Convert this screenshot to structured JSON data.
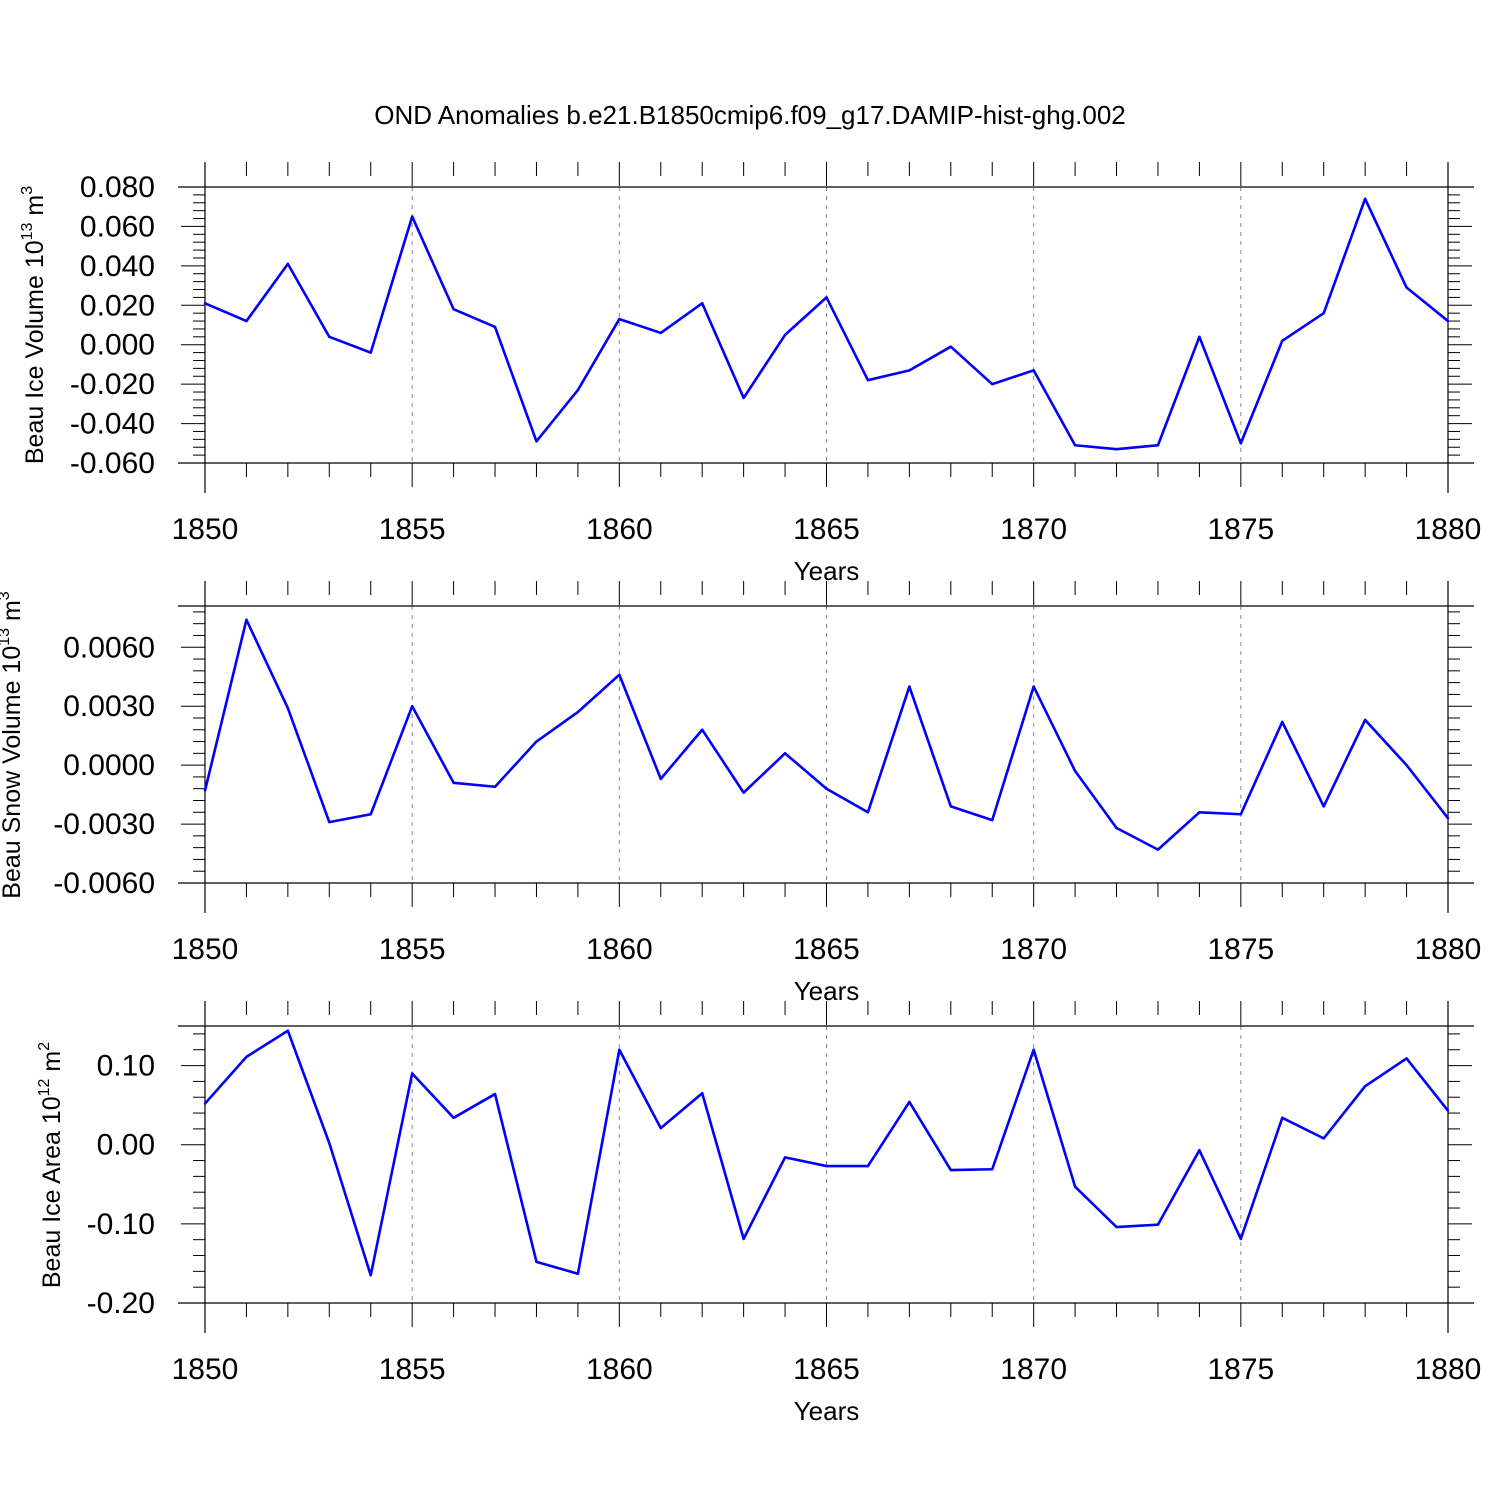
{
  "title": "OND Anomalies b.e21.B1850cmip6.f09_g17.DAMIP-hist-ghg.002",
  "colors": {
    "line": "#0000ff",
    "axis": "#000000",
    "grid": "#888888"
  },
  "chart_data": [
    {
      "type": "line",
      "ylabel_main": "Beau Ice Volume 10",
      "ylabel_exp": "13",
      "ylabel_unit": "m",
      "ylabel_unit_exp": "3",
      "xlabel": "Years",
      "xlim": [
        1850,
        1880
      ],
      "ylim": [
        -0.06,
        0.08
      ],
      "xticks": [
        "1850",
        "1855",
        "1860",
        "1865",
        "1870",
        "1875",
        "1880"
      ],
      "xtick_values": [
        1850,
        1855,
        1860,
        1865,
        1870,
        1875,
        1880
      ],
      "yticks": [
        "0.080",
        "0.060",
        "0.040",
        "0.020",
        "0.000",
        "-0.020",
        "-0.040",
        "-0.060"
      ],
      "ytick_values": [
        0.08,
        0.06,
        0.04,
        0.02,
        0.0,
        -0.02,
        -0.04,
        -0.06
      ],
      "x": [
        1850,
        1851,
        1852,
        1853,
        1854,
        1855,
        1856,
        1857,
        1858,
        1859,
        1860,
        1861,
        1862,
        1863,
        1864,
        1865,
        1866,
        1867,
        1868,
        1869,
        1870,
        1871,
        1872,
        1873,
        1874,
        1875,
        1876,
        1877,
        1878,
        1879,
        1880
      ],
      "values": [
        0.021,
        0.012,
        0.041,
        0.004,
        -0.004,
        0.065,
        0.018,
        0.009,
        -0.049,
        -0.023,
        0.013,
        0.006,
        0.021,
        -0.027,
        0.005,
        0.024,
        -0.018,
        -0.013,
        -0.001,
        -0.02,
        -0.013,
        -0.051,
        -0.053,
        -0.051,
        0.004,
        -0.05,
        0.002,
        0.016,
        0.074,
        0.029,
        0.012
      ],
      "grid": "vertical dashed at major x ticks"
    },
    {
      "type": "line",
      "ylabel_main": "Beau Snow Volume 10",
      "ylabel_exp": "13",
      "ylabel_unit": "m",
      "ylabel_unit_exp": "3",
      "xlabel": "Years",
      "xlim": [
        1850,
        1880
      ],
      "ylim": [
        -0.006,
        0.0081
      ],
      "xticks": [
        "1850",
        "1855",
        "1860",
        "1865",
        "1870",
        "1875",
        "1880"
      ],
      "xtick_values": [
        1850,
        1855,
        1860,
        1865,
        1870,
        1875,
        1880
      ],
      "yticks": [
        "0.0060",
        "0.0030",
        "0.0000",
        "-0.0030",
        "-0.0060"
      ],
      "ytick_values": [
        0.006,
        0.003,
        0.0,
        -0.003,
        -0.006
      ],
      "x": [
        1850,
        1851,
        1852,
        1853,
        1854,
        1855,
        1856,
        1857,
        1858,
        1859,
        1860,
        1861,
        1862,
        1863,
        1864,
        1865,
        1866,
        1867,
        1868,
        1869,
        1870,
        1871,
        1872,
        1873,
        1874,
        1875,
        1876,
        1877,
        1878,
        1879,
        1880
      ],
      "values": [
        -0.0013,
        0.0074,
        0.0029,
        -0.0029,
        -0.0025,
        0.003,
        -0.0009,
        -0.0011,
        0.0012,
        0.0027,
        0.0046,
        -0.0007,
        0.0018,
        -0.0014,
        0.0006,
        -0.0012,
        -0.0024,
        0.004,
        -0.0021,
        -0.0028,
        0.004,
        -0.0003,
        -0.0032,
        -0.0043,
        -0.0024,
        -0.0025,
        0.0022,
        -0.0021,
        0.0023,
        0.0,
        -0.0027
      ],
      "grid": "vertical dashed at major x ticks"
    },
    {
      "type": "line",
      "ylabel_main": "Beau Ice Area 10",
      "ylabel_exp": "12",
      "ylabel_unit": "m",
      "ylabel_unit_exp": "2",
      "xlabel": "Years",
      "xlim": [
        1850,
        1880
      ],
      "ylim": [
        -0.2,
        0.15
      ],
      "xticks": [
        "1850",
        "1855",
        "1860",
        "1865",
        "1870",
        "1875",
        "1880"
      ],
      "xtick_values": [
        1850,
        1855,
        1860,
        1865,
        1870,
        1875,
        1880
      ],
      "yticks": [
        "0.10",
        "0.00",
        "-0.10",
        "-0.20"
      ],
      "ytick_values": [
        0.1,
        0.0,
        -0.1,
        -0.2
      ],
      "x": [
        1850,
        1851,
        1852,
        1853,
        1854,
        1855,
        1856,
        1857,
        1858,
        1859,
        1860,
        1861,
        1862,
        1863,
        1864,
        1865,
        1866,
        1867,
        1868,
        1869,
        1870,
        1871,
        1872,
        1873,
        1874,
        1875,
        1876,
        1877,
        1878,
        1879,
        1880
      ],
      "values": [
        0.052,
        0.111,
        0.144,
        0.002,
        -0.165,
        0.09,
        0.034,
        0.064,
        -0.148,
        -0.163,
        0.12,
        0.021,
        0.065,
        -0.119,
        -0.016,
        -0.027,
        -0.027,
        0.054,
        -0.032,
        -0.031,
        0.12,
        -0.053,
        -0.104,
        -0.101,
        -0.007,
        -0.119,
        0.034,
        0.008,
        0.074,
        0.109,
        0.043
      ],
      "grid": "vertical dashed at major x ticks"
    }
  ]
}
